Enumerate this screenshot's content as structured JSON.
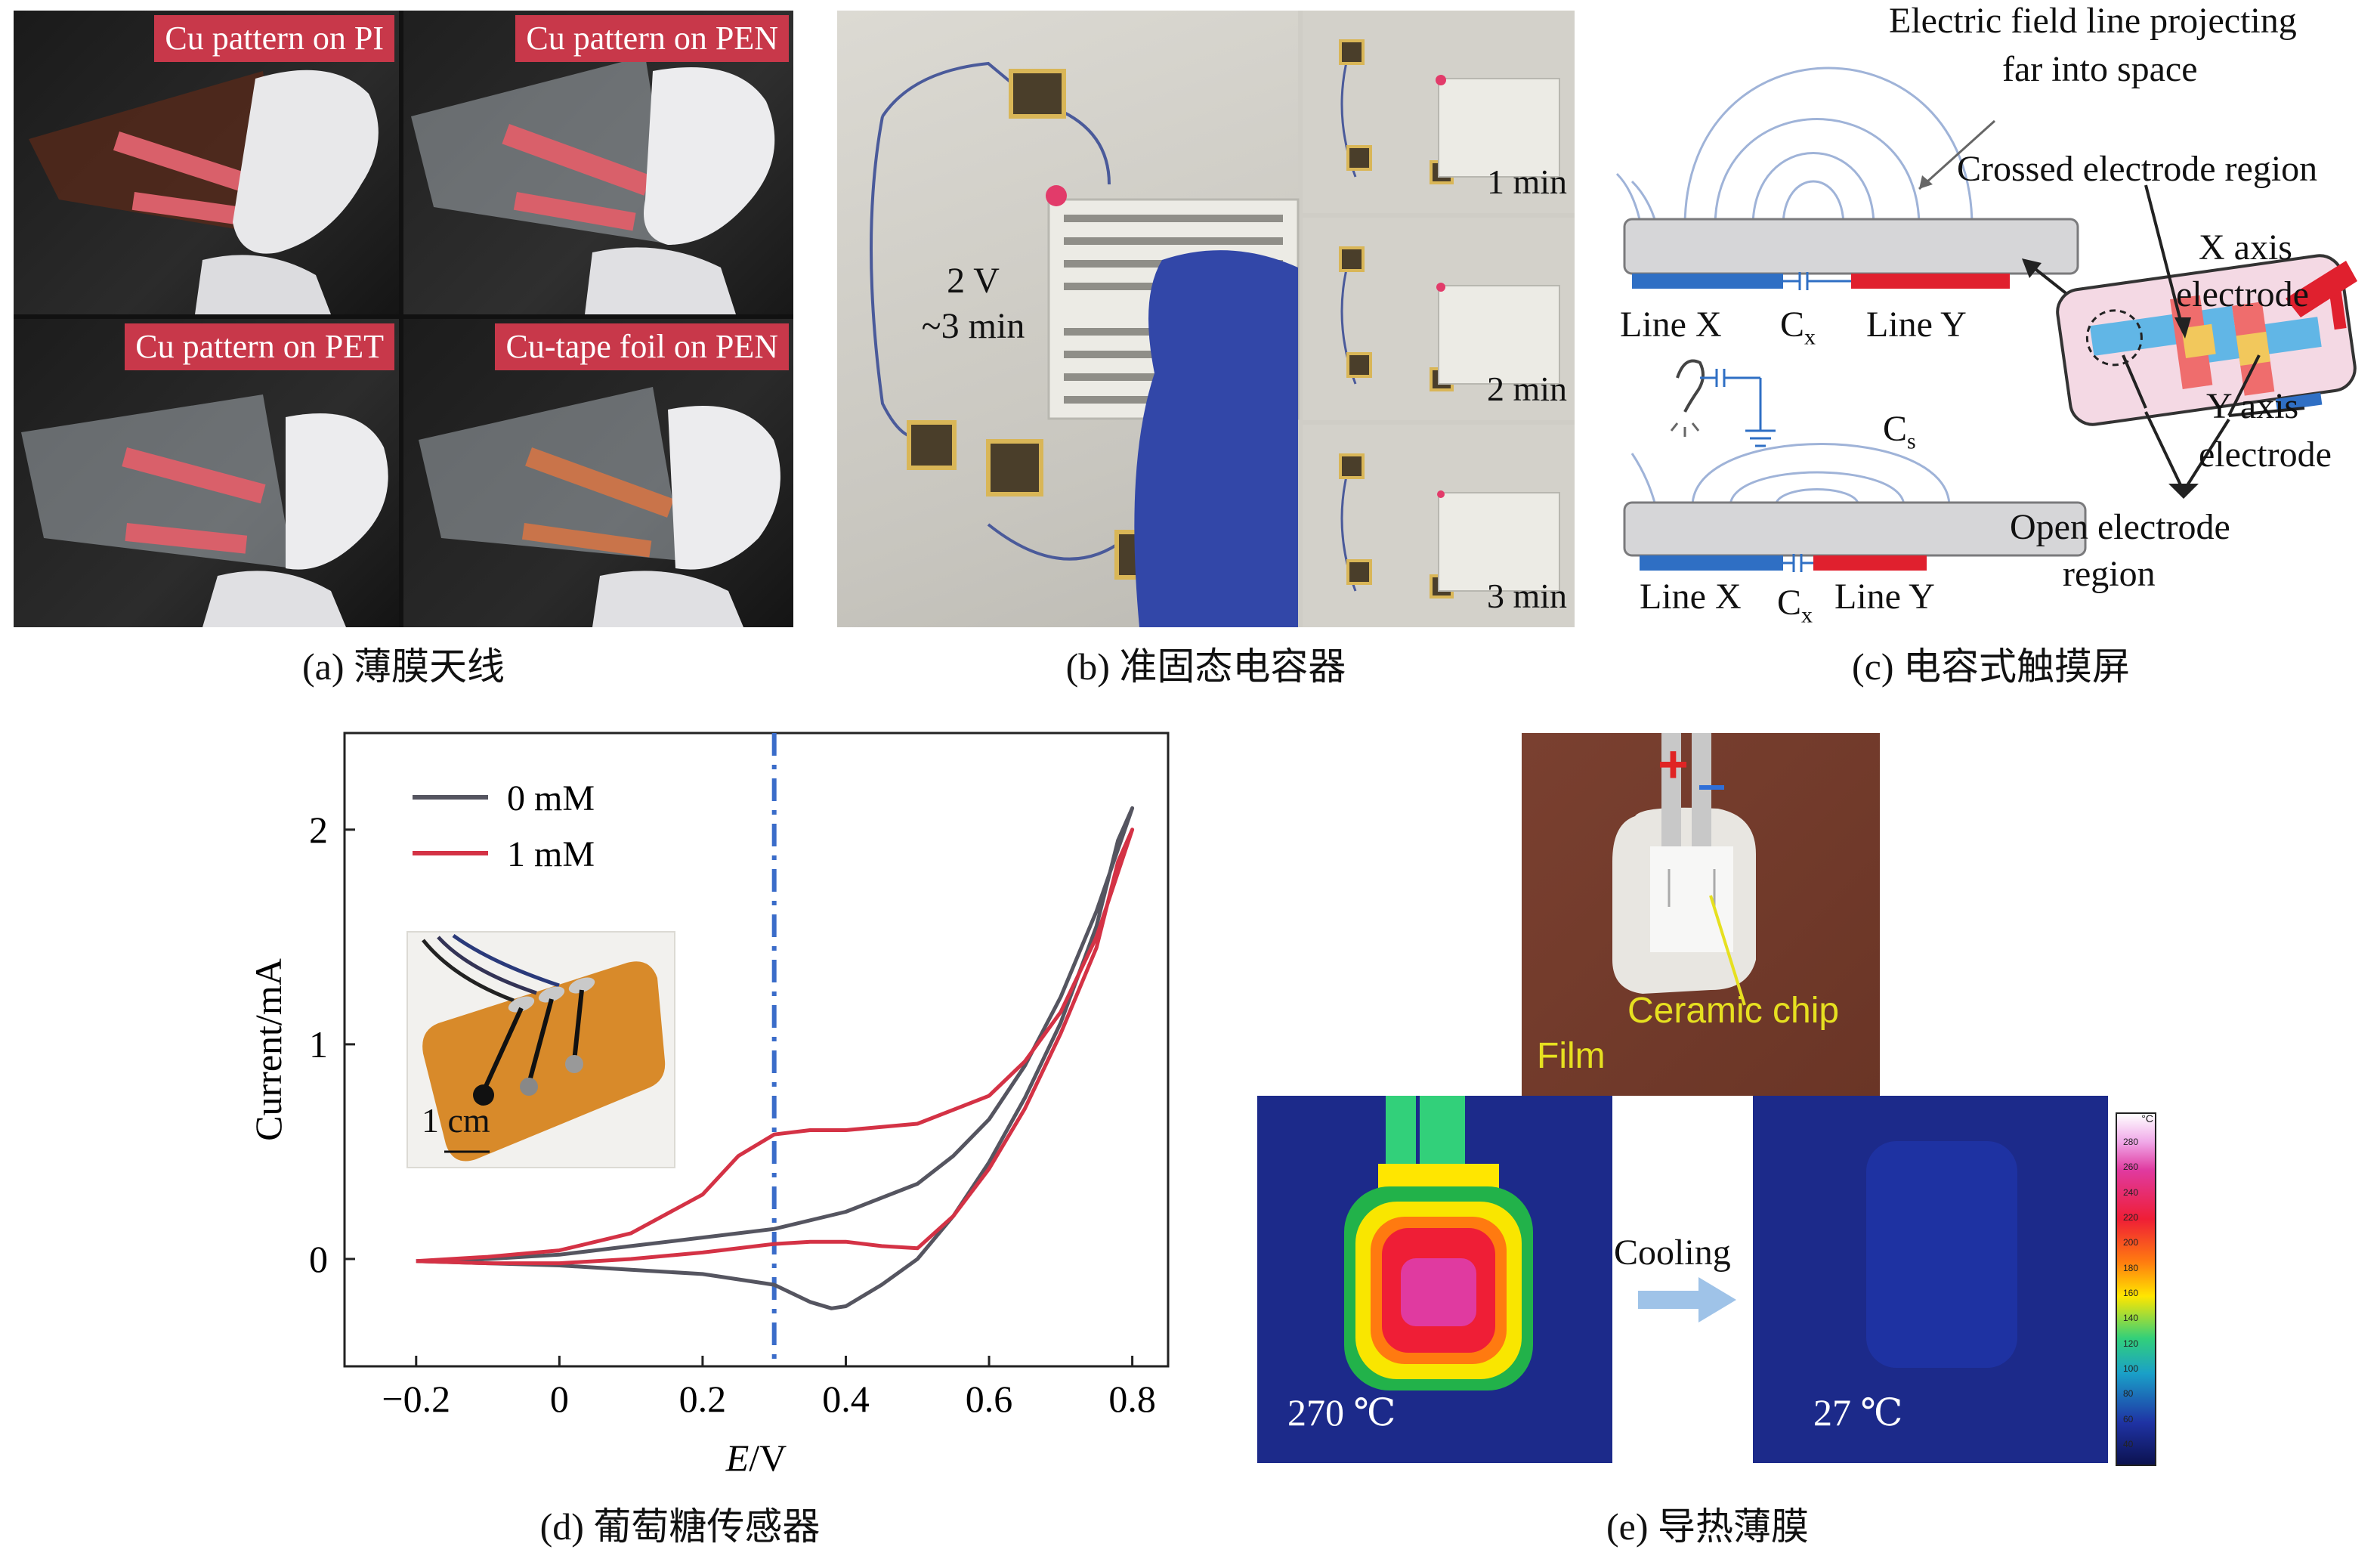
{
  "panel_a": {
    "labels": [
      "Cu pattern on PI",
      "Cu pattern on PEN",
      "Cu pattern on PET",
      "Cu-tape foil on PEN"
    ],
    "caption": "(a) 薄膜天线"
  },
  "panel_b": {
    "main_label_line1": "2 V",
    "main_label_line2": "~3 min",
    "time_labels": [
      "1 min",
      "2 min",
      "3 min"
    ],
    "caption": "(b) 准固态电容器"
  },
  "panel_c": {
    "annotation_field_line1": "Electric field line projecting",
    "annotation_field_line2": "far into space",
    "annotation_crossed": "Crossed electrode region",
    "annotation_x_axis_line1": "X axis",
    "annotation_x_axis_line2": "electrode",
    "annotation_y_axis_line1": "Y axis",
    "annotation_y_axis_line2": "electrode",
    "annotation_open_line1": "Open electrode",
    "annotation_open_line2": "region",
    "line_x": "Line X",
    "line_y": "Line Y",
    "cx_main": "C",
    "cx_sub": "x",
    "cs_main": "C",
    "cs_sub": "s",
    "caption": "(c) 电容式触摸屏"
  },
  "panel_d": {
    "caption": "(d) 葡萄糖传感器",
    "inset_scale": "1 cm",
    "xlabel_italic": "E",
    "xlabel_rest": "/V",
    "ylabel": "Current/mA"
  },
  "chart_data": {
    "type": "line",
    "title": "",
    "xlabel": "E/V",
    "ylabel": "Current/mA",
    "xlim": [
      -0.3,
      0.85
    ],
    "ylim": [
      -0.5,
      2.45
    ],
    "xticks": [
      -0.2,
      0,
      0.2,
      0.4,
      0.6,
      0.8
    ],
    "xtick_labels": [
      "−0.2",
      "0",
      "0.2",
      "0.4",
      "0.6",
      "0.8"
    ],
    "yticks": [
      0,
      1,
      2
    ],
    "ytick_labels": [
      "0",
      "1",
      "2"
    ],
    "vertical_line_x": 0.3,
    "vertical_line_color": "#3a6cc9",
    "legend_position": "top-left",
    "series": [
      {
        "name": "0 mM",
        "color": "#555560",
        "x": [
          -0.2,
          -0.1,
          0.0,
          0.1,
          0.2,
          0.3,
          0.4,
          0.5,
          0.55,
          0.6,
          0.65,
          0.7,
          0.75,
          0.8,
          0.78,
          0.75,
          0.7,
          0.65,
          0.6,
          0.55,
          0.5,
          0.45,
          0.4,
          0.38,
          0.35,
          0.3,
          0.2,
          0.1,
          0.0,
          -0.1,
          -0.2
        ],
        "y": [
          -0.01,
          0.0,
          0.02,
          0.06,
          0.1,
          0.14,
          0.22,
          0.35,
          0.48,
          0.65,
          0.9,
          1.22,
          1.62,
          2.1,
          1.95,
          1.55,
          1.1,
          0.75,
          0.45,
          0.2,
          0.0,
          -0.12,
          -0.22,
          -0.23,
          -0.2,
          -0.12,
          -0.07,
          -0.05,
          -0.03,
          -0.02,
          -0.01
        ]
      },
      {
        "name": "1 mM",
        "color": "#d43245",
        "x": [
          -0.2,
          -0.1,
          0.0,
          0.1,
          0.2,
          0.25,
          0.3,
          0.35,
          0.4,
          0.5,
          0.6,
          0.65,
          0.7,
          0.75,
          0.8,
          0.78,
          0.75,
          0.7,
          0.65,
          0.6,
          0.55,
          0.5,
          0.45,
          0.4,
          0.35,
          0.3,
          0.2,
          0.1,
          0.0,
          -0.1,
          -0.2
        ],
        "y": [
          -0.01,
          0.01,
          0.04,
          0.12,
          0.3,
          0.48,
          0.58,
          0.6,
          0.6,
          0.63,
          0.76,
          0.92,
          1.15,
          1.5,
          2.0,
          1.85,
          1.45,
          1.05,
          0.7,
          0.42,
          0.2,
          0.05,
          0.06,
          0.08,
          0.08,
          0.07,
          0.03,
          0.0,
          -0.02,
          -0.02,
          -0.01
        ]
      }
    ]
  },
  "panel_e": {
    "caption": "(e) 导热薄膜",
    "plus_sign": "+",
    "ceramic_label": "Ceramic chip",
    "film_label": "Film",
    "cooling_label": "Cooling",
    "temp_hot": "270 ℃",
    "temp_cold": "27 ℃",
    "colorbar_unit": "°C",
    "colorbar_ticks": [
      "280",
      "260",
      "240",
      "220",
      "200",
      "180",
      "160",
      "140",
      "120",
      "100",
      "80",
      "60",
      "40"
    ]
  }
}
